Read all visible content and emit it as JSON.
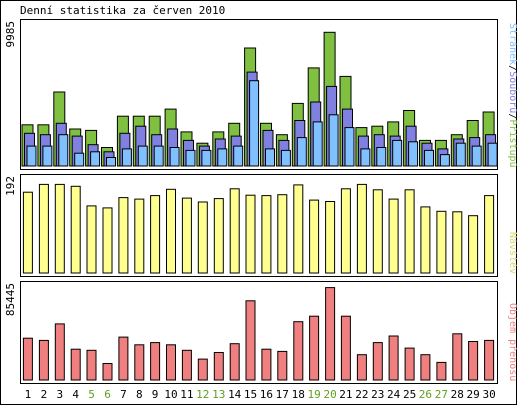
{
  "title": "Denní statistika za červen 2010",
  "colors": {
    "pristupu": "#80c040",
    "souboru": "#8080e0",
    "stranek": "#80c0ff",
    "navstev": "#ffff90",
    "objem": "#f08080",
    "weekday_label": "#000000",
    "weekend_label": "#60a020",
    "border": "#000000"
  },
  "chart_data": [
    {
      "type": "bar",
      "panel": "top",
      "max_label": "9985",
      "ylim": [
        0,
        9985
      ],
      "categories": [
        "1",
        "2",
        "3",
        "4",
        "5",
        "6",
        "7",
        "8",
        "9",
        "10",
        "11",
        "12",
        "13",
        "14",
        "15",
        "16",
        "17",
        "18",
        "19",
        "20",
        "21",
        "22",
        "23",
        "24",
        "25",
        "26",
        "27",
        "28",
        "29",
        "30"
      ],
      "weekend": [
        false,
        false,
        false,
        false,
        true,
        true,
        false,
        false,
        false,
        false,
        false,
        true,
        true,
        false,
        false,
        false,
        false,
        false,
        true,
        true,
        false,
        false,
        false,
        false,
        false,
        true,
        true,
        false,
        false,
        false
      ],
      "legend": [
        {
          "text": "Stránek",
          "color": "#80c0ff"
        },
        {
          "text": "/",
          "color": "#000000"
        },
        {
          "text": "Souborů",
          "color": "#8080e0"
        },
        {
          "text": "/",
          "color": "#000000"
        },
        {
          "text": "Přístupů",
          "color": "#80c040"
        }
      ],
      "series": [
        {
          "name": "Přístupů",
          "values": [
            2900,
            2900,
            5200,
            2600,
            2500,
            1300,
            3500,
            3500,
            3500,
            4000,
            2400,
            1600,
            2400,
            3000,
            8300,
            3000,
            2200,
            4400,
            6900,
            9400,
            6300,
            2700,
            2800,
            3100,
            3900,
            1800,
            1800,
            2200,
            3200,
            3800
          ]
        },
        {
          "name": "Souborů",
          "values": [
            2300,
            2200,
            3000,
            2100,
            1500,
            1000,
            2300,
            2800,
            2200,
            2600,
            1800,
            1400,
            1900,
            2100,
            6600,
            2500,
            1800,
            3200,
            4500,
            5600,
            4000,
            2100,
            2200,
            2100,
            2800,
            1600,
            1200,
            1900,
            2000,
            2200
          ]
        },
        {
          "name": "Stránek",
          "values": [
            1400,
            1400,
            2200,
            900,
            1000,
            600,
            1200,
            1400,
            1400,
            1300,
            1100,
            1100,
            1200,
            1400,
            6000,
            1200,
            1100,
            2000,
            3100,
            3600,
            2700,
            1200,
            1300,
            1800,
            1700,
            1100,
            800,
            1600,
            1400,
            1600
          ]
        }
      ]
    },
    {
      "type": "bar",
      "panel": "middle",
      "max_label": "192",
      "ylim": [
        0,
        192
      ],
      "legend": [
        {
          "text": "Návštěv",
          "color": "#ffff90"
        }
      ],
      "series": [
        {
          "name": "Návštěv",
          "values": [
            165,
            181,
            181,
            177,
            137,
            133,
            154,
            151,
            158,
            171,
            153,
            145,
            152,
            172,
            159,
            158,
            160,
            180,
            149,
            146,
            172,
            181,
            170,
            151,
            170,
            135,
            126,
            125,
            117,
            158
          ]
        }
      ]
    },
    {
      "type": "bar",
      "panel": "bottom",
      "max_label": "85445",
      "ylim": [
        0,
        85445
      ],
      "legend": [
        {
          "text": "Objem přenosu",
          "color": "#f08080"
        }
      ],
      "series": [
        {
          "name": "Objem přenosu",
          "values": [
            38000,
            36000,
            51000,
            28000,
            27000,
            15000,
            39000,
            32000,
            34000,
            32000,
            27000,
            19000,
            25000,
            33000,
            72000,
            28000,
            26000,
            53000,
            58000,
            84000,
            58000,
            23000,
            34000,
            40000,
            29000,
            23000,
            16000,
            42000,
            35000,
            36000
          ]
        }
      ]
    }
  ]
}
